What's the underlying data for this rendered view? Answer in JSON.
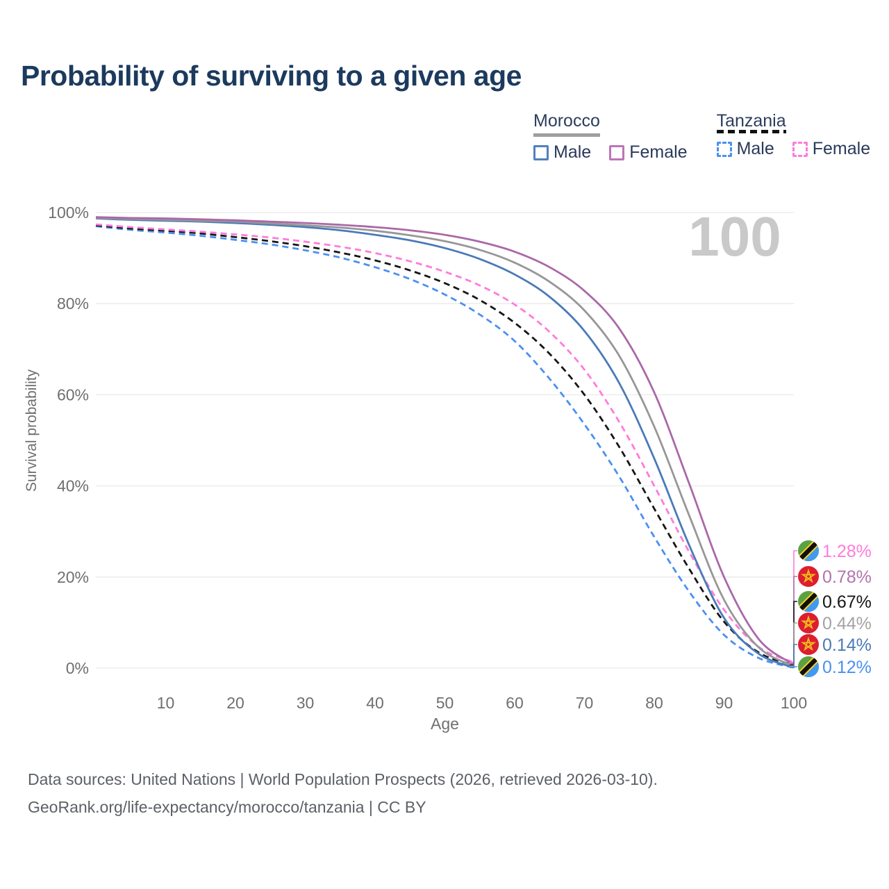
{
  "page": {
    "title": "Probability of surviving to a given age",
    "watermark": "100"
  },
  "legend": {
    "morocco": {
      "title": "Morocco",
      "male_label": "Male",
      "female_label": "Female",
      "male_color": "#5081bd",
      "female_color": "#bd74b5",
      "underline": "solid-gray"
    },
    "tanzania": {
      "title": "Tanzania",
      "male_label": "Male",
      "female_label": "Female",
      "male_color": "#4a90f2",
      "female_color": "#ff7bdb",
      "underline": "dashed-black"
    }
  },
  "chart_data": {
    "type": "line",
    "title": "Probability of surviving to a given age",
    "xlabel": "Age",
    "ylabel": "Survival probability",
    "xlim": [
      0,
      100
    ],
    "ylim": [
      0,
      100
    ],
    "grid": "horizontal-only",
    "x_ticks": [
      10,
      20,
      30,
      40,
      50,
      60,
      70,
      80,
      90,
      100
    ],
    "y_ticks": [
      {
        "v": 0,
        "label": "0%"
      },
      {
        "v": 20,
        "label": "20%"
      },
      {
        "v": 40,
        "label": "40%"
      },
      {
        "v": 60,
        "label": "60%"
      },
      {
        "v": 80,
        "label": "80%"
      },
      {
        "v": 100,
        "label": "100%"
      }
    ],
    "x": [
      0,
      5,
      10,
      15,
      20,
      25,
      30,
      35,
      40,
      45,
      50,
      55,
      60,
      65,
      70,
      75,
      80,
      85,
      90,
      95,
      100
    ],
    "series": [
      {
        "name": "Tanzania Male",
        "country": "Tanzania",
        "sex": "Male",
        "color": "#4a90f2",
        "dash": "dashed",
        "values": [
          97.0,
          96.2,
          95.6,
          94.9,
          94.0,
          93.0,
          91.7,
          90.1,
          88.0,
          85.4,
          82.0,
          77.6,
          71.8,
          63.5,
          53.5,
          42.0,
          28.8,
          16.8,
          7.3,
          2.2,
          0.12
        ]
      },
      {
        "name": "Tanzania Both sexes",
        "country": "Tanzania",
        "sex": "Both",
        "color": "#161616",
        "dash": "dashed",
        "values": [
          97.2,
          96.5,
          96.0,
          95.4,
          94.6,
          93.7,
          92.6,
          91.2,
          89.5,
          87.3,
          84.5,
          80.8,
          75.8,
          69.0,
          60.0,
          48.5,
          35.0,
          21.8,
          10.2,
          3.4,
          0.67
        ]
      },
      {
        "name": "Tanzania Female",
        "country": "Tanzania",
        "sex": "Female",
        "color": "#ff7bdb",
        "dash": "dashed",
        "values": [
          97.4,
          96.8,
          96.3,
          95.8,
          95.2,
          94.5,
          93.6,
          92.5,
          91.1,
          89.3,
          87.0,
          84.0,
          79.8,
          73.8,
          65.5,
          54.0,
          40.0,
          25.5,
          12.8,
          4.6,
          1.28
        ]
      },
      {
        "name": "Morocco Male",
        "country": "Morocco",
        "sex": "Male",
        "color": "#4a7ab8",
        "dash": "solid",
        "values": [
          98.7,
          98.4,
          98.2,
          98.0,
          97.7,
          97.3,
          96.8,
          96.1,
          95.1,
          93.9,
          92.2,
          89.8,
          86.4,
          81.5,
          74.0,
          62.5,
          46.0,
          27.0,
          11.0,
          3.1,
          0.14
        ]
      },
      {
        "name": "Morocco Both sexes",
        "country": "Morocco",
        "sex": "Both",
        "color": "#979797",
        "dash": "solid",
        "values": [
          98.8,
          98.6,
          98.4,
          98.2,
          98.0,
          97.6,
          97.2,
          96.7,
          96.0,
          95.0,
          93.7,
          91.8,
          89.0,
          84.8,
          78.5,
          68.5,
          53.0,
          33.5,
          15.0,
          4.5,
          0.44
        ]
      },
      {
        "name": "Morocco Female",
        "country": "Morocco",
        "sex": "Female",
        "color": "#aa68a8",
        "dash": "solid",
        "values": [
          99.0,
          98.8,
          98.7,
          98.5,
          98.3,
          98.0,
          97.7,
          97.3,
          96.8,
          96.1,
          95.1,
          93.6,
          91.4,
          88.0,
          82.8,
          74.5,
          60.5,
          40.5,
          20.0,
          6.3,
          0.78
        ]
      }
    ],
    "end_labels": [
      {
        "flag": "tanzania",
        "value": "1.28%",
        "color": "#ff7bdb",
        "series": "Tanzania Female"
      },
      {
        "flag": "morocco",
        "value": "0.78%",
        "color": "#b173ad",
        "series": "Morocco Female"
      },
      {
        "flag": "tanzania",
        "value": "0.67%",
        "color": "#161616",
        "series": "Tanzania Both sexes"
      },
      {
        "flag": "morocco",
        "value": "0.44%",
        "color": "#a3a3a3",
        "series": "Morocco Both sexes"
      },
      {
        "flag": "morocco",
        "value": "0.14%",
        "color": "#4a7ab8",
        "series": "Morocco Male"
      },
      {
        "flag": "tanzania",
        "value": "0.12%",
        "color": "#4a90f2",
        "series": "Tanzania Male"
      }
    ],
    "hover_age_indicator": "100"
  },
  "footer": {
    "line1": "Data sources: United Nations | World Population Prospects (2026, retrieved 2026-03-10).",
    "line2": "GeoRank.org/life-expectancy/morocco/tanzania | CC BY"
  }
}
